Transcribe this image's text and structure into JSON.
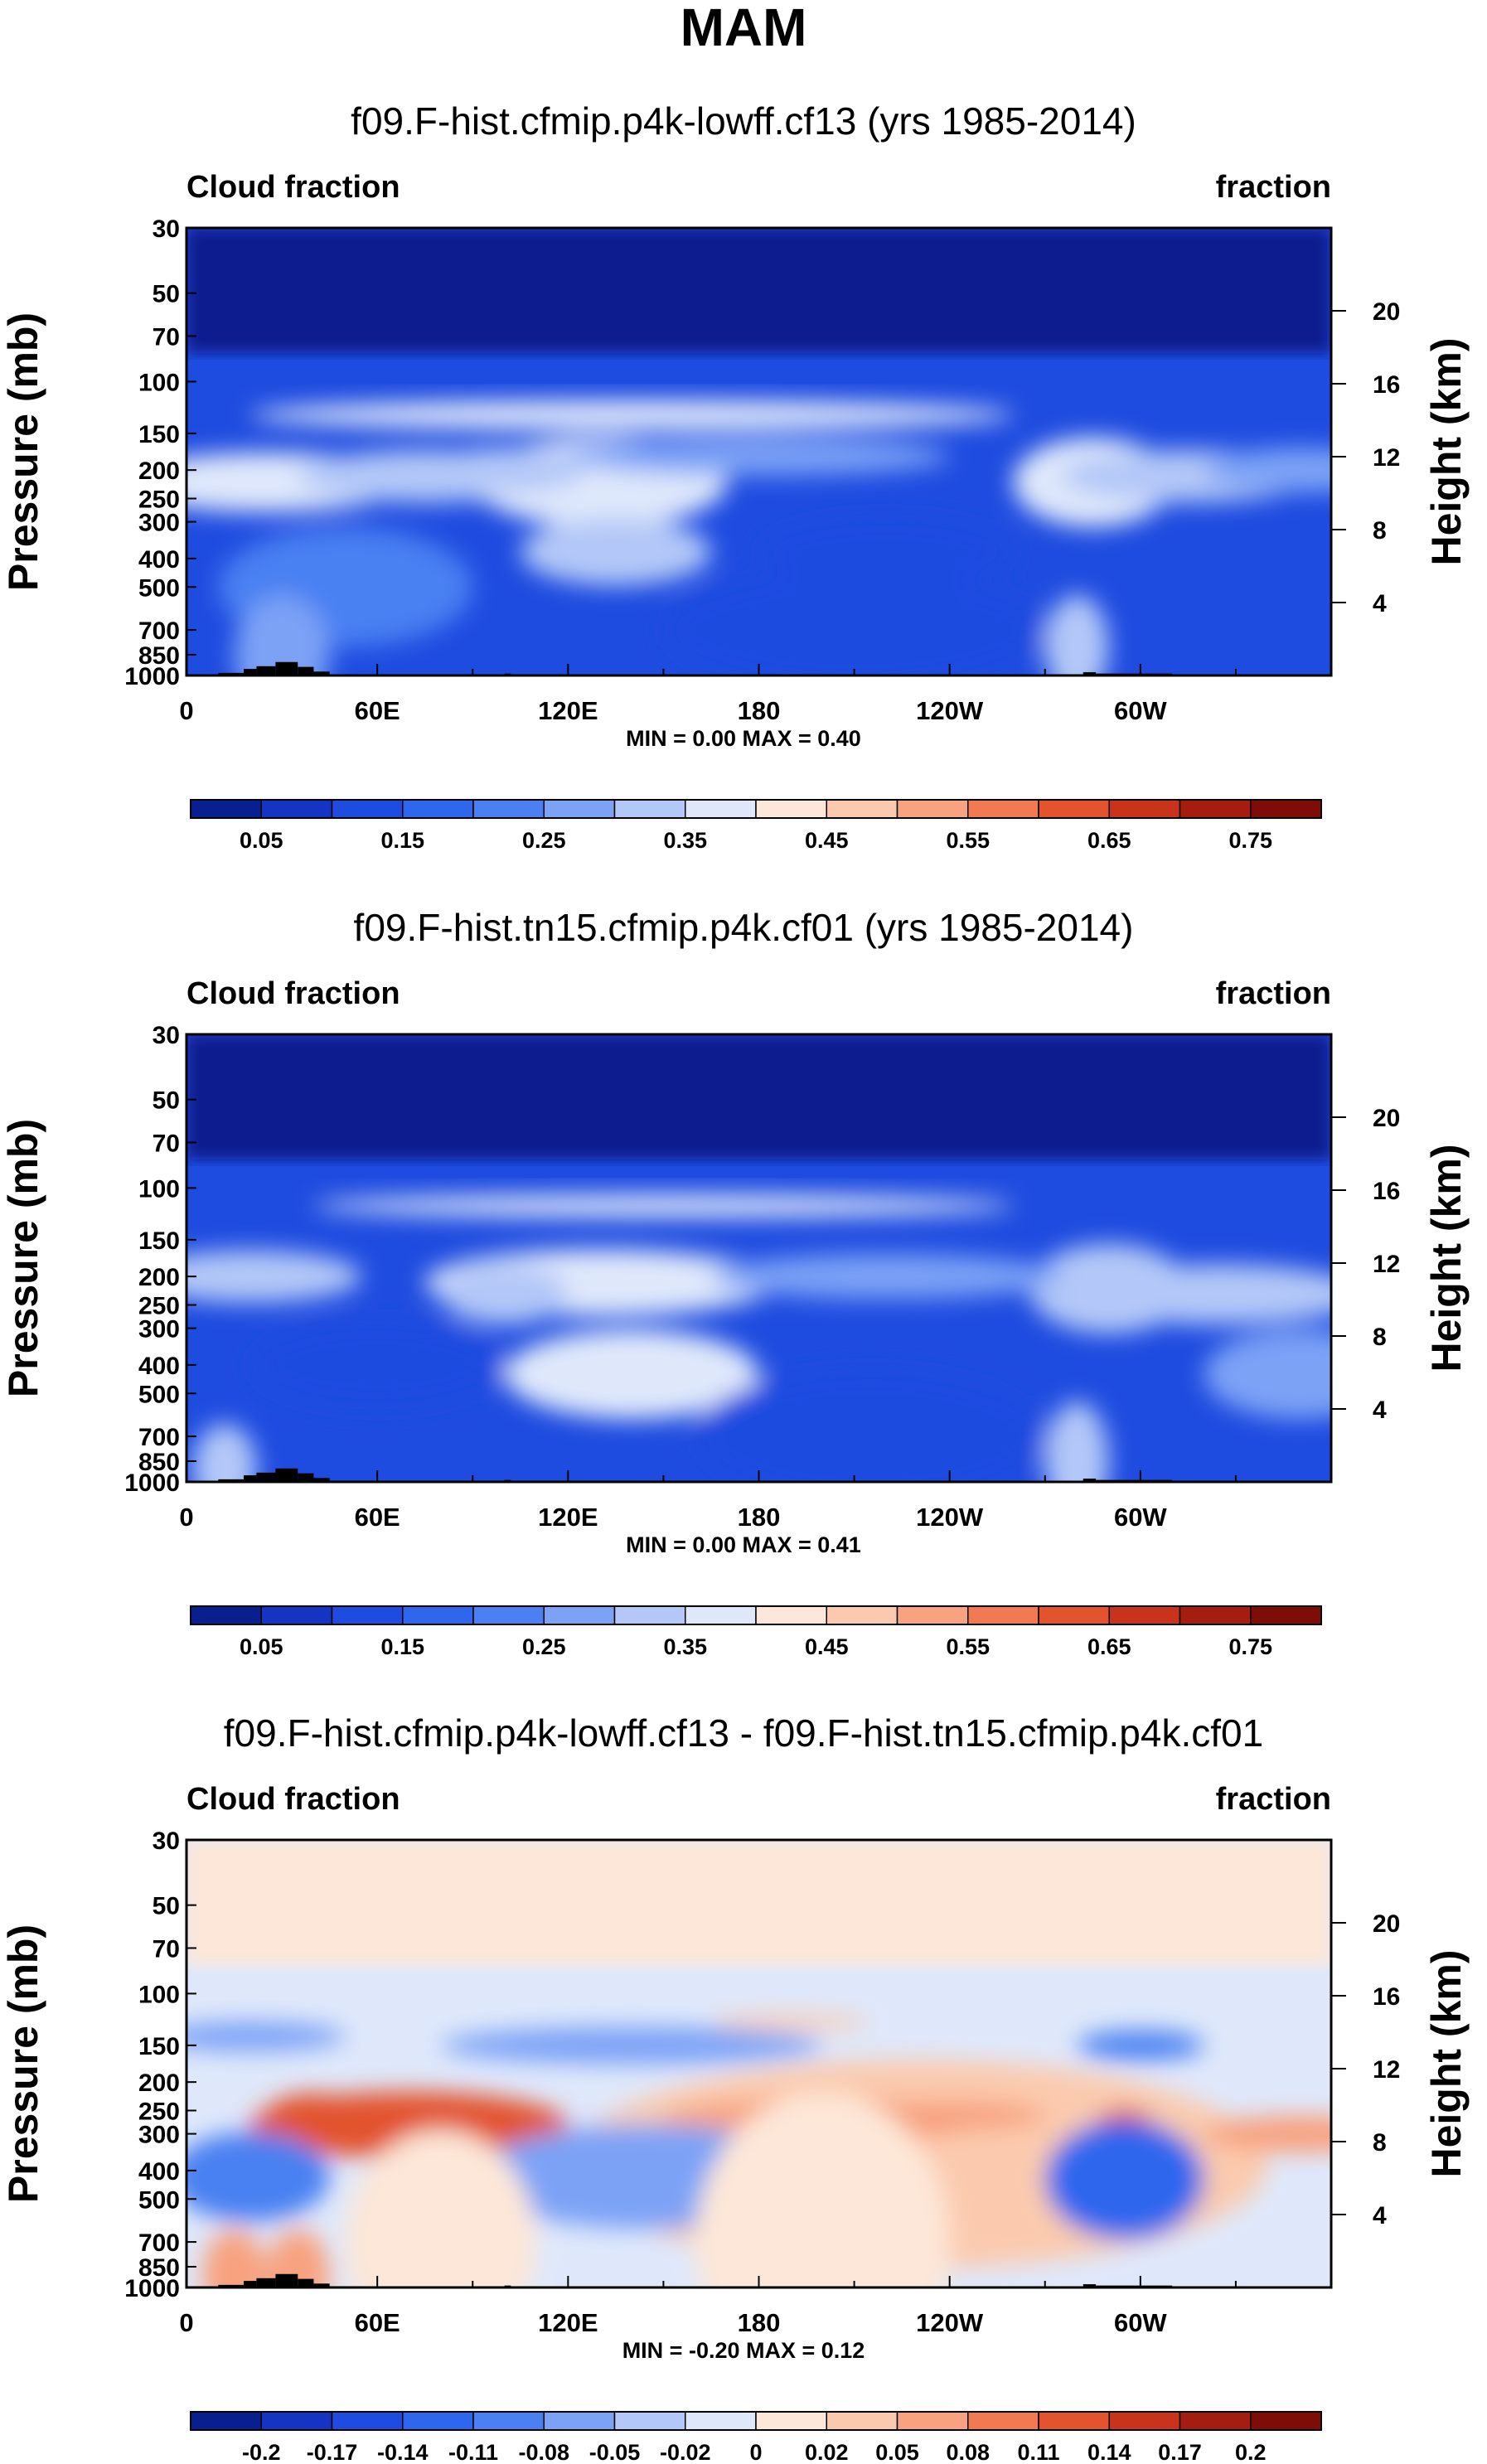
{
  "figure": {
    "title": "MAM"
  },
  "colors": {
    "abs": [
      "#0a1f8f",
      "#1634c4",
      "#1f4ce0",
      "#2e66ee",
      "#4a80f2",
      "#7ca2f6",
      "#b3c8f8",
      "#dfe8fb",
      "#fde7d8",
      "#fbcaae",
      "#f8a27f",
      "#f27a52",
      "#e3532d",
      "#c9331b",
      "#a51d11",
      "#7e0d08"
    ],
    "diff": [
      "#0a1f8f",
      "#1634c4",
      "#1f4ce0",
      "#2e66ee",
      "#4a80f2",
      "#7ca2f6",
      "#b3c8f8",
      "#dfe8fb",
      "#fde7d8",
      "#fbcaae",
      "#f8a27f",
      "#f27a52",
      "#e3532d",
      "#c9331b",
      "#a51d11",
      "#7e0d08"
    ],
    "terrain": "#000000"
  },
  "chart_data": [
    {
      "type": "heatmap",
      "panel": "abs1",
      "title": "f09.F-hist.cfmip.p4k-lowff.cf13 (yrs 1985-2014)",
      "left_label": "Cloud fraction",
      "right_label": "fraction",
      "ylabel": "Pressure (mb)",
      "y2label": "Height (km)",
      "x_ticks": [
        "0",
        "60E",
        "120E",
        "180",
        "120W",
        "60W"
      ],
      "x_tick_lon": [
        0,
        60,
        120,
        180,
        240,
        300
      ],
      "xlim": [
        0,
        360
      ],
      "y_ticks": [
        "30",
        "50",
        "70",
        "100",
        "150",
        "200",
        "250",
        "300",
        "400",
        "500",
        "700",
        "850",
        "1000"
      ],
      "y_tick_p": [
        30,
        50,
        70,
        100,
        150,
        200,
        250,
        300,
        400,
        500,
        700,
        850,
        1000
      ],
      "ylim": [
        30,
        1000
      ],
      "height_ticks": [
        "20",
        "16",
        "12",
        "8",
        "4"
      ],
      "height_km": [
        20,
        16,
        12,
        8,
        4
      ],
      "min_label": "MIN =",
      "min_value": "0.00",
      "max_label": "MAX =",
      "max_value": "0.40",
      "colorbar_levels": [
        0.0,
        0.05,
        0.1,
        0.15,
        0.2,
        0.25,
        0.3,
        0.35,
        0.4,
        0.45,
        0.5,
        0.55,
        0.6,
        0.65,
        0.7,
        0.75,
        0.8
      ],
      "colorbar_labels": [
        "0.05",
        "0.15",
        "0.25",
        "0.35",
        "0.45",
        "0.55",
        "0.65",
        "0.75"
      ],
      "colorbar_label_index": [
        1,
        3,
        5,
        7,
        9,
        11,
        13,
        15
      ]
    },
    {
      "type": "heatmap",
      "panel": "abs2",
      "title": "f09.F-hist.tn15.cfmip.p4k.cf01 (yrs 1985-2014)",
      "left_label": "Cloud fraction",
      "right_label": "fraction",
      "ylabel": "Pressure (mb)",
      "y2label": "Height (km)",
      "x_ticks": [
        "0",
        "60E",
        "120E",
        "180",
        "120W",
        "60W"
      ],
      "x_tick_lon": [
        0,
        60,
        120,
        180,
        240,
        300
      ],
      "xlim": [
        0,
        360
      ],
      "y_ticks": [
        "30",
        "50",
        "70",
        "100",
        "150",
        "200",
        "250",
        "300",
        "400",
        "500",
        "700",
        "850",
        "1000"
      ],
      "y_tick_p": [
        30,
        50,
        70,
        100,
        150,
        200,
        250,
        300,
        400,
        500,
        700,
        850,
        1000
      ],
      "ylim": [
        30,
        1000
      ],
      "height_ticks": [
        "20",
        "16",
        "12",
        "8",
        "4"
      ],
      "height_km": [
        20,
        16,
        12,
        8,
        4
      ],
      "min_label": "MIN =",
      "min_value": "0.00",
      "max_label": "MAX =",
      "max_value": "0.41",
      "colorbar_levels": [
        0.0,
        0.05,
        0.1,
        0.15,
        0.2,
        0.25,
        0.3,
        0.35,
        0.4,
        0.45,
        0.5,
        0.55,
        0.6,
        0.65,
        0.7,
        0.75,
        0.8
      ],
      "colorbar_labels": [
        "0.05",
        "0.15",
        "0.25",
        "0.35",
        "0.45",
        "0.55",
        "0.65",
        "0.75"
      ],
      "colorbar_label_index": [
        1,
        3,
        5,
        7,
        9,
        11,
        13,
        15
      ]
    },
    {
      "type": "heatmap",
      "panel": "diff",
      "title": "f09.F-hist.cfmip.p4k-lowff.cf13 - f09.F-hist.tn15.cfmip.p4k.cf01",
      "left_label": "Cloud fraction",
      "right_label": "fraction",
      "ylabel": "Pressure (mb)",
      "y2label": "Height (km)",
      "x_ticks": [
        "0",
        "60E",
        "120E",
        "180",
        "120W",
        "60W"
      ],
      "x_tick_lon": [
        0,
        60,
        120,
        180,
        240,
        300
      ],
      "xlim": [
        0,
        360
      ],
      "y_ticks": [
        "30",
        "50",
        "70",
        "100",
        "150",
        "200",
        "250",
        "300",
        "400",
        "500",
        "700",
        "850",
        "1000"
      ],
      "y_tick_p": [
        30,
        50,
        70,
        100,
        150,
        200,
        250,
        300,
        400,
        500,
        700,
        850,
        1000
      ],
      "ylim": [
        30,
        1000
      ],
      "height_ticks": [
        "20",
        "16",
        "12",
        "8",
        "4"
      ],
      "height_km": [
        20,
        16,
        12,
        8,
        4
      ],
      "min_label": "MIN =",
      "min_value": "-0.20",
      "max_label": "MAX =",
      "max_value": "0.12",
      "colorbar_levels": [
        -0.24,
        -0.2,
        -0.17,
        -0.14,
        -0.11,
        -0.08,
        -0.05,
        -0.02,
        0,
        0.02,
        0.05,
        0.08,
        0.11,
        0.14,
        0.17,
        0.2,
        0.24
      ],
      "colorbar_labels": [
        "-0.2",
        "-0.17",
        "-0.14",
        "-0.11",
        "-0.08",
        "-0.05",
        "-0.02",
        "0",
        "0.02",
        "0.05",
        "0.08",
        "0.11",
        "0.14",
        "0.17",
        "0.2"
      ],
      "colorbar_label_index": [
        1,
        2,
        3,
        4,
        5,
        6,
        7,
        8,
        9,
        10,
        11,
        12,
        13,
        14,
        15
      ]
    }
  ]
}
